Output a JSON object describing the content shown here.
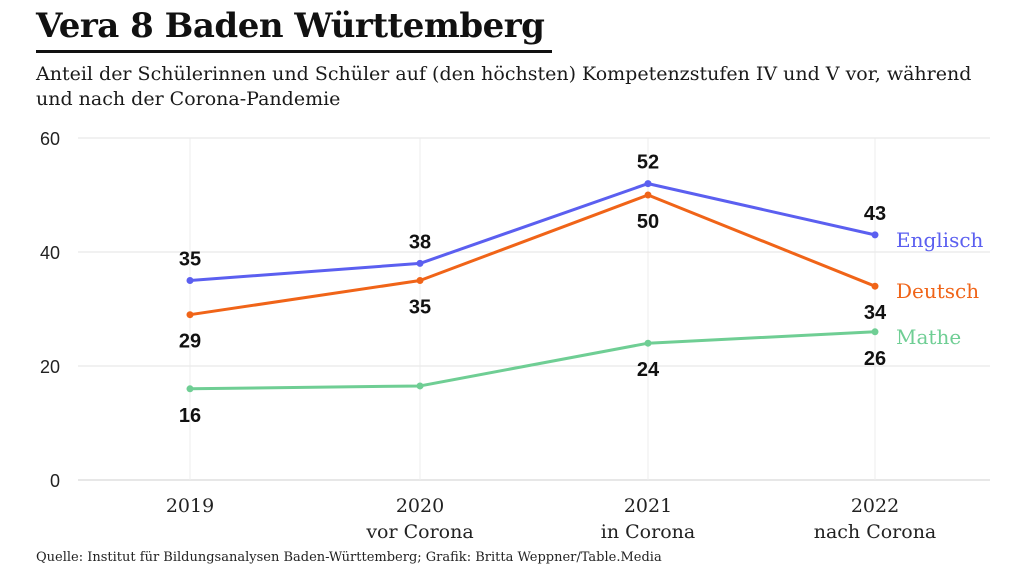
{
  "title": "Vera 8 Baden Württemberg",
  "subtitle": "Anteil der Schülerinnen und Schüler auf (den höchsten) Kompetenzstufen IV und V vor, während und nach der Corona-Pandemie",
  "source": "Quelle: Institut für Bildungsanalysen Baden-Württemberg; Grafik: Britta Weppner/Table.Media",
  "chart_data": {
    "type": "line",
    "categories": [
      [
        "2019"
      ],
      [
        "2020",
        "vor Corona"
      ],
      [
        "2021",
        "in Corona"
      ],
      [
        "2022",
        "nach Corona"
      ]
    ],
    "ylim": [
      0,
      60
    ],
    "yticks": [
      0,
      20,
      40,
      60
    ],
    "grid": true,
    "legend": "direct-labels-right",
    "series": [
      {
        "name": "Englisch",
        "color": "#5b5ff0",
        "values": [
          35,
          38,
          52,
          43
        ],
        "labels": [
          "35",
          "38",
          "52",
          "43"
        ],
        "label_pos": [
          "above",
          "above",
          "above",
          "above"
        ]
      },
      {
        "name": "Deutsch",
        "color": "#f06418",
        "values": [
          29,
          35,
          50,
          34
        ],
        "labels": [
          "29",
          "35",
          "50",
          "34"
        ],
        "label_pos": [
          "below",
          "below",
          "below",
          "below"
        ]
      },
      {
        "name": "Mathe",
        "color": "#6fce94",
        "values": [
          16,
          16.5,
          24,
          26
        ],
        "labels": [
          "16",
          "",
          "24",
          "26"
        ],
        "label_pos": [
          "below",
          "below",
          "below",
          "below"
        ]
      }
    ]
  }
}
